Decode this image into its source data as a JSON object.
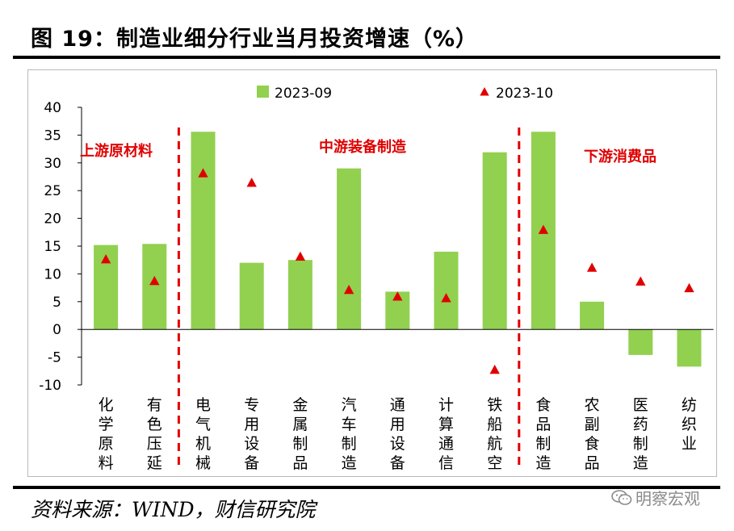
{
  "title": "图 19：制造业细分行业当月投资增速（%）",
  "source": "资料来源：WIND，财信研究院",
  "watermark": "明察宏观",
  "colors": {
    "bar": "#92d050",
    "marker": "#e00000",
    "divider": "#e00000",
    "section_label": "#e00000"
  },
  "chart_data": {
    "type": "bar",
    "categories": [
      "化学原料",
      "有色压延",
      "电气机械",
      "专用设备",
      "金属制品",
      "汽车制造",
      "通用设备",
      "计算通信",
      "铁船航空",
      "食品制造",
      "农副食品",
      "医药制造",
      "纺织业"
    ],
    "series": [
      {
        "name": "2023-09",
        "type": "bar",
        "values": [
          15.2,
          15.4,
          35.6,
          12.0,
          12.5,
          29.0,
          6.8,
          14.0,
          31.9,
          35.6,
          5.0,
          -4.6,
          -6.7
        ]
      },
      {
        "name": "2023-10",
        "type": "marker-triangle",
        "values": [
          12.6,
          8.7,
          28.1,
          26.4,
          13.1,
          7.1,
          5.9,
          5.6,
          -7.3,
          17.9,
          11.1,
          8.6,
          7.4
        ]
      }
    ],
    "ylim": [
      -10,
      40
    ],
    "yticks": [
      -10,
      -5,
      0,
      5,
      10,
      15,
      20,
      25,
      30,
      35,
      40
    ],
    "legend_position": "top",
    "grid": false,
    "sections": [
      {
        "label": "上游原材料",
        "start": 0,
        "end": 1
      },
      {
        "label": "中游装备制造",
        "start": 2,
        "end": 8
      },
      {
        "label": "下游消费品",
        "start": 9,
        "end": 12
      }
    ]
  }
}
